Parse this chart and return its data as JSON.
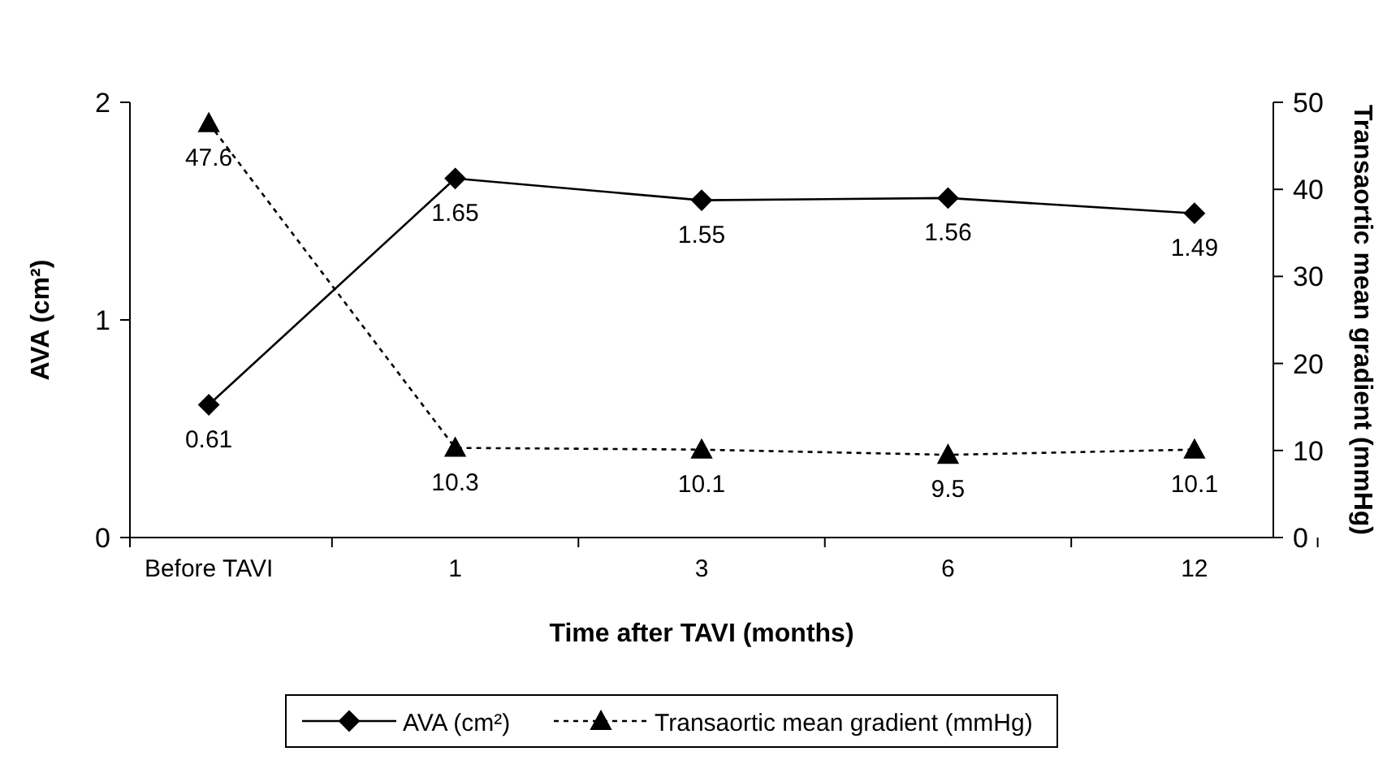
{
  "chart_data": {
    "type": "line",
    "xlabel": "Time after TAVI (months)",
    "ylabel": "AVA (cm²)",
    "y2label": "Transaortic mean gradient (mmHg)",
    "categories": [
      "Before TAVI",
      "1",
      "3",
      "6",
      "12"
    ],
    "series": [
      {
        "name": "AVA (cm²)",
        "color": "#000000",
        "values": [
          0.61,
          1.65,
          1.55,
          1.56,
          1.49
        ],
        "marker": "diamond",
        "line_style": "solid"
      },
      {
        "name": "Transaortic mean gradient (mmHg)",
        "color": "#000000",
        "values": [
          47.6,
          10.3,
          10.1,
          9.5,
          10.1
        ],
        "axis": "y2",
        "marker": "triangle",
        "line_style": "dotted"
      }
    ],
    "ylim": [
      0,
      2
    ],
    "yticks": [
      0,
      1,
      2
    ],
    "y2lim": [
      0,
      50
    ],
    "y2ticks": [
      0,
      10,
      20,
      30,
      40,
      50
    ],
    "data_labels": true,
    "legend": "bottom",
    "grid": false
  }
}
